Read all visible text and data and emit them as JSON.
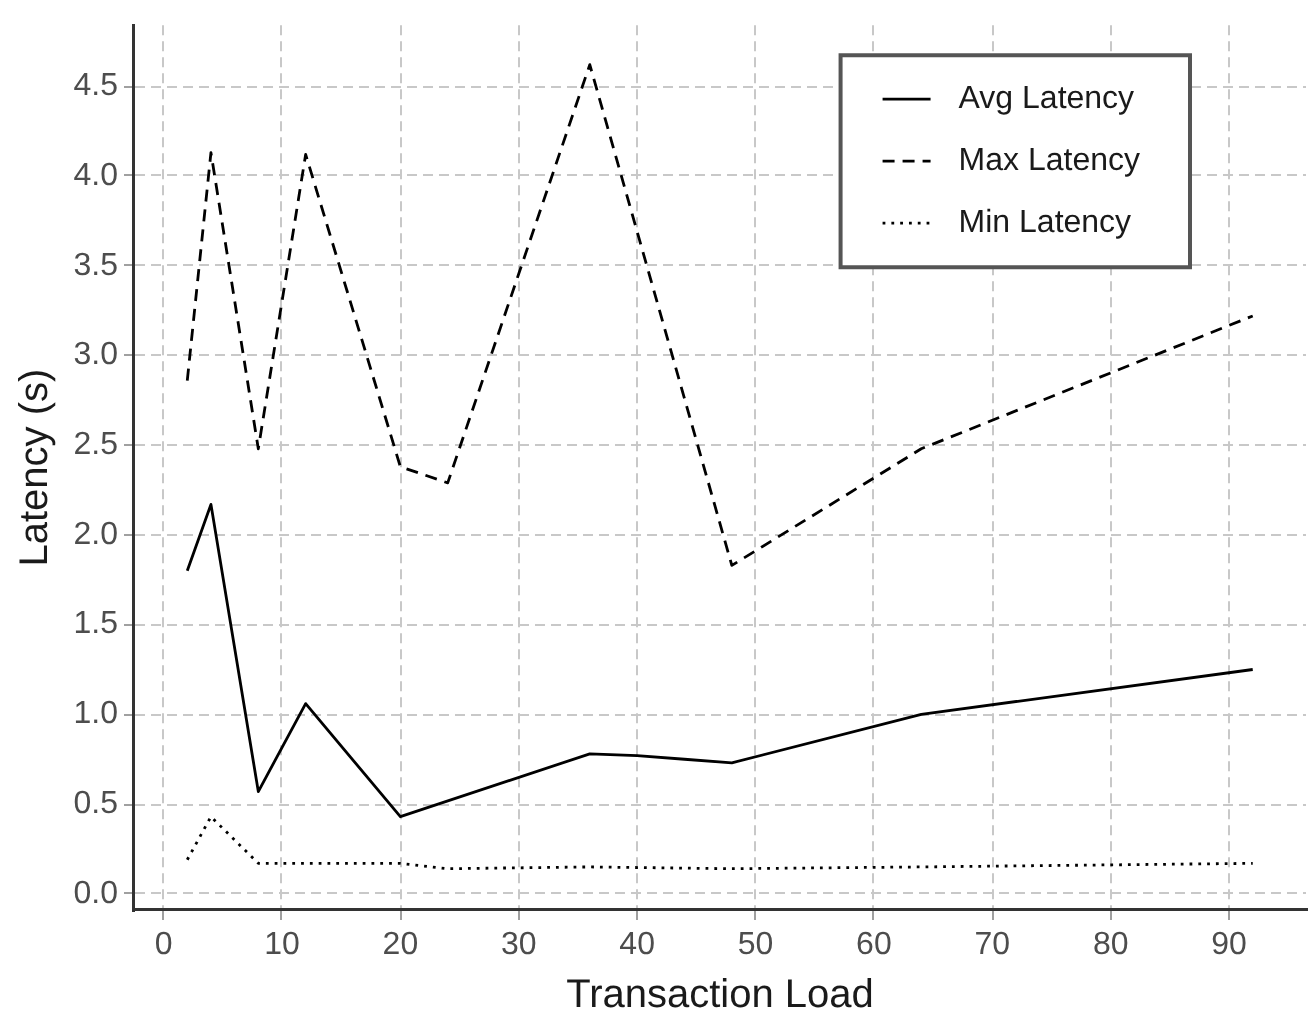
{
  "chart_data": {
    "type": "line",
    "xlabel": "Transaction Load",
    "ylabel": "Latency (s)",
    "xlim": [
      -2.5,
      96.5
    ],
    "xticks": [
      0,
      10,
      20,
      30,
      40,
      50,
      60,
      70,
      80,
      90
    ],
    "ylim": [
      -0.09,
      4.84
    ],
    "yticks": [
      {
        "value": 0,
        "label": "0.0"
      },
      {
        "value": 0.5,
        "label": "0.5"
      },
      {
        "value": 1,
        "label": "1.0"
      },
      {
        "value": 1.5,
        "label": "1.5"
      },
      {
        "value": 2,
        "label": "2.0"
      },
      {
        "value": 2.5,
        "label": "2.5"
      },
      {
        "value": 3,
        "label": "3.0"
      },
      {
        "value": 3.5,
        "label": "3.5"
      },
      {
        "value": 4,
        "label": "4.0"
      },
      {
        "value": 4.5,
        "label": "4.5"
      }
    ],
    "grid": true,
    "legend": "top right",
    "marker": "none",
    "series": [
      {
        "name": "Avg Latency",
        "color": "#000000",
        "line_style": "solid",
        "x": [
          2,
          4,
          8,
          12,
          20,
          36,
          40,
          44,
          48,
          64,
          92
        ],
        "values": [
          1.8,
          2.17,
          0.57,
          1.06,
          0.43,
          0.78,
          0.77,
          0.75,
          0.73,
          1.0,
          1.25
        ]
      },
      {
        "name": "Max Latency",
        "color": "#000000",
        "line_style": "dashed",
        "x": [
          2,
          4,
          8,
          12,
          20,
          24,
          36,
          48,
          64,
          92
        ],
        "values": [
          2.86,
          4.13,
          2.48,
          4.12,
          2.38,
          2.29,
          4.62,
          1.83,
          2.48,
          3.22
        ]
      },
      {
        "name": "Min Latency",
        "color": "#000000",
        "line_style": "dotted",
        "x": [
          2,
          4,
          8,
          12,
          20,
          24,
          36,
          48,
          64,
          92
        ],
        "values": [
          0.19,
          0.43,
          0.17,
          0.17,
          0.17,
          0.14,
          0.15,
          0.14,
          0.15,
          0.17
        ]
      }
    ]
  }
}
